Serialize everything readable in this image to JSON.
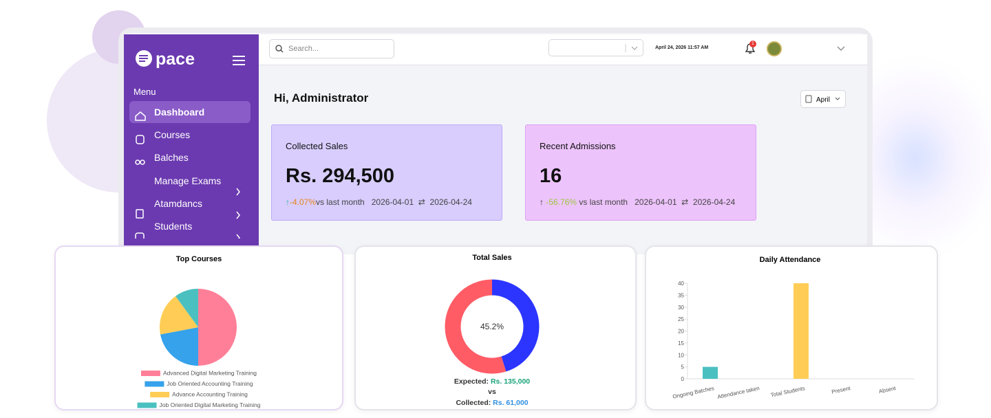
{
  "sidebar": {
    "logo": "pace",
    "menu_label": "Menu",
    "items": [
      "Dashboard",
      "Courses",
      "Balches",
      "Manage Exams",
      "Atamdancs",
      "Students"
    ]
  },
  "header": {
    "search_placeholder": "Search...",
    "datetime": "April 24, 2026 11:57 AM",
    "notification_count": 1
  },
  "greeting": "Hi, Administrator",
  "month_filter": "April",
  "cards": [
    {
      "title": "Collected Sales",
      "value": "Rs. 294,500",
      "change": "-4.07%",
      "comparison": "vs last month",
      "date_from": "2026-04-01",
      "date_to": "2026-04-24"
    },
    {
      "title": "Recent Admissions",
      "value": "16",
      "change": "-56.76%",
      "comparison": "vs last month",
      "date_from": "2026-04-01",
      "date_to": "2026-04-24"
    }
  ],
  "chart_data": [
    {
      "type": "pie",
      "title": "Top Courses",
      "categories": [
        "Advanced Digital Marketing Training",
        "Job Oriented Accounting Training",
        "Advance Accounting Training",
        "Job Oriented Digital Marketing Training"
      ],
      "values": [
        50,
        22,
        18,
        10
      ],
      "colors": [
        "#ff7f98",
        "#36a2eb",
        "#ffcd56",
        "#4bc0c0"
      ]
    },
    {
      "type": "donut",
      "title": "Total Sales",
      "center_label": "45.2%",
      "expected_label": "Expected:",
      "expected": 135000,
      "expected_value_label": "Rs. 135,000",
      "vs_label": "vs",
      "collected_label": "Collected:",
      "collected": 61000,
      "collected_value_label": "Rs. 61,000",
      "colors": [
        "#ff5c66",
        "#2b35ff"
      ]
    },
    {
      "type": "bar",
      "title": "Daily Attendance",
      "categories": [
        "Ongoing Batches",
        "Attendance taken",
        "Total Students",
        "Present",
        "Absent"
      ],
      "values": [
        5,
        0,
        40,
        0,
        0
      ],
      "colors": [
        "#4bc0c0",
        "#4bc0c0",
        "#ffcd56",
        "#ffcd56",
        "#ffcd56"
      ],
      "ylim": [
        0,
        40
      ],
      "yticks": [
        0,
        5,
        10,
        15,
        20,
        25,
        30,
        35,
        40
      ]
    }
  ]
}
